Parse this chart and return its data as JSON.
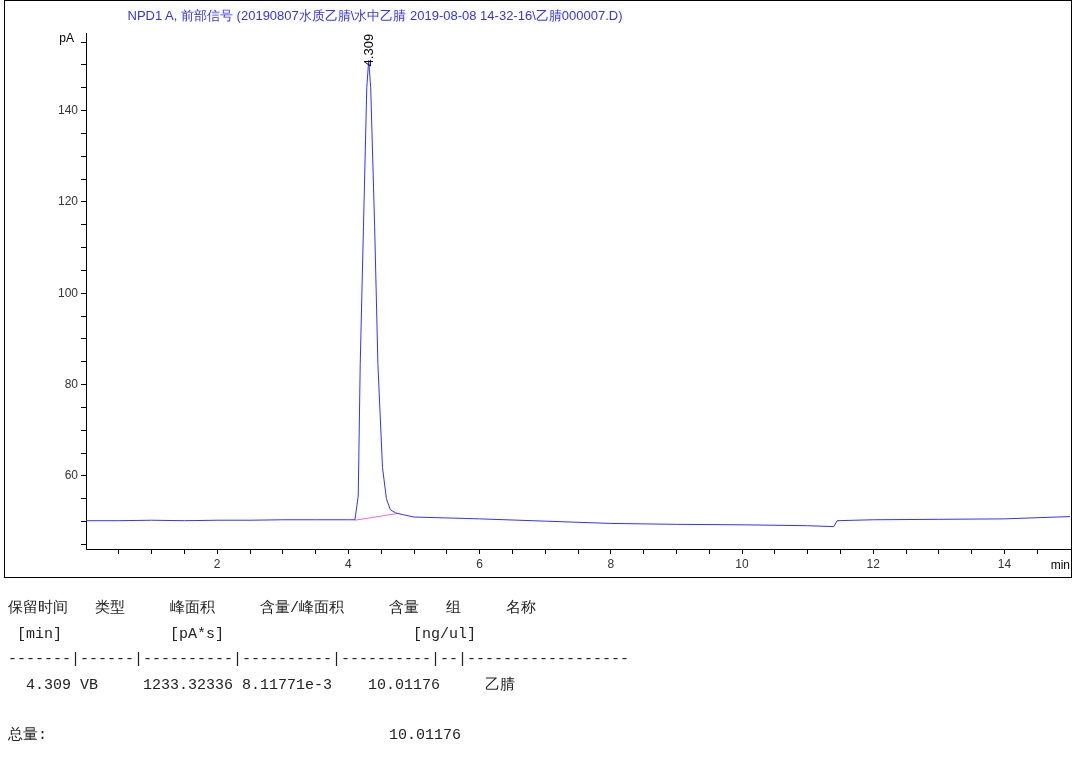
{
  "chart_data": {
    "type": "line",
    "title": "NPD1 A, 前部信号 (20190807水质乙腈\\水中乙腈 2019-08-08 14-32-16\\乙腈000007.D)",
    "xlabel": "min",
    "ylabel": "pA",
    "xlim": [
      0,
      15
    ],
    "xticks": [
      {
        "value": 0.5,
        "label": null
      },
      {
        "value": 1,
        "label": null
      },
      {
        "value": 1.5,
        "label": null
      },
      2,
      {
        "value": 2.5,
        "label": null
      },
      {
        "value": 3,
        "label": null
      },
      {
        "value": 3.5,
        "label": null
      },
      4,
      {
        "value": 4.5,
        "label": null
      },
      {
        "value": 5,
        "label": null
      },
      {
        "value": 5.5,
        "label": null
      },
      6,
      {
        "value": 6.5,
        "label": null
      },
      {
        "value": 7,
        "label": null
      },
      {
        "value": 7.5,
        "label": null
      },
      8,
      {
        "value": 8.5,
        "label": null
      },
      {
        "value": 9,
        "label": null
      },
      {
        "value": 9.5,
        "label": null
      },
      10,
      {
        "value": 10.5,
        "label": null
      },
      {
        "value": 11,
        "label": null
      },
      {
        "value": 11.5,
        "label": null
      },
      12,
      {
        "value": 12.5,
        "label": null
      },
      {
        "value": 13,
        "label": null
      },
      {
        "value": 13.5,
        "label": null
      },
      14,
      {
        "value": 14.5,
        "label": null
      }
    ],
    "ylim": [
      44,
      157
    ],
    "yticks": [
      {
        "value": 45,
        "label": null
      },
      {
        "value": 50,
        "label": null
      },
      {
        "value": 55,
        "label": null
      },
      60,
      {
        "value": 65,
        "label": null
      },
      {
        "value": 70,
        "label": null
      },
      {
        "value": 75,
        "label": null
      },
      80,
      {
        "value": 85,
        "label": null
      },
      {
        "value": 90,
        "label": null
      },
      {
        "value": 95,
        "label": null
      },
      100,
      {
        "value": 105,
        "label": null
      },
      {
        "value": 110,
        "label": null
      },
      {
        "value": 115,
        "label": null
      },
      120,
      {
        "value": 125,
        "label": null
      },
      {
        "value": 130,
        "label": null
      },
      {
        "value": 135,
        "label": null
      },
      140,
      {
        "value": 145,
        "label": null
      },
      {
        "value": 150,
        "label": null
      },
      {
        "value": 155,
        "label": null
      }
    ],
    "grid": false,
    "legend": false,
    "marker": "none",
    "line_style": "solid",
    "series": [
      {
        "color": "#3333ff",
        "x": [
          0,
          0.5,
          1,
          1.5,
          2,
          2.5,
          3,
          3.5,
          4,
          4.1,
          4.15,
          4.18,
          4.23,
          4.28,
          4.309,
          4.34,
          4.4,
          4.45,
          4.52,
          4.58,
          4.64,
          4.72,
          4.84,
          5,
          5.5,
          6,
          7,
          8,
          9,
          10,
          11,
          11.4,
          11.45,
          12,
          13,
          14,
          15
        ],
        "values": [
          50.2,
          50.2,
          50.3,
          50.2,
          50.3,
          50.3,
          50.4,
          50.4,
          50.4,
          50.4,
          55.6,
          84.4,
          114.7,
          145,
          151,
          145,
          114.7,
          84.4,
          61.8,
          55,
          52.6,
          51.9,
          51.5,
          51.0,
          50.8,
          50.6,
          50.1,
          49.6,
          49.4,
          49.3,
          49.1,
          48.9,
          50.2,
          50.4,
          50.5,
          50.6,
          51.1
        ]
      },
      {
        "color": "#ff66cc",
        "x": [
          4.1,
          4.76
        ],
        "values": [
          50.3,
          51.8
        ]
      }
    ],
    "annotations": [
      {
        "text": "4.309",
        "x": 4.309,
        "y": 151
      },
      "保留时间   类型     峰面积     含量/峰面积     含量   组     名称",
      " [min]            [pA*s]                     [ng/ul]",
      "-------|------|----------|----------|----------|--|------------------",
      "  4.309 VB     1233.32336 8.11771e-3    10.01176     乙腈",
      "总量:                                      10.01176"
    ]
  }
}
